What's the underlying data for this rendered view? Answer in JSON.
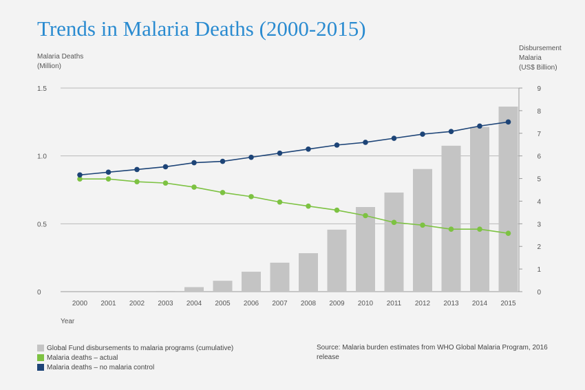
{
  "title": "Trends in Malaria Deaths (2000-2015)",
  "left_axis_label": [
    "Malaria Deaths",
    "(Million)"
  ],
  "right_axis_label": [
    "Disbursement",
    "Malaria",
    "(US$ Billion)"
  ],
  "x_axis_label": "Year",
  "source": "Source: Malaria burden estimates from WHO Global Malaria Program, 2016 release",
  "legend": [
    {
      "label": "Global Fund disbursements to malaria programs (cumulative)",
      "color": "#c4c4c4"
    },
    {
      "label": "Malaria deaths – actual",
      "color": "#7dc242"
    },
    {
      "label": "Malaria deaths – no malaria control",
      "color": "#1d4477"
    }
  ],
  "chart_data": {
    "type": "bar+line",
    "title": "Trends in Malaria Deaths (2000-2015)",
    "xlabel": "Year",
    "ylabel_left": "Malaria Deaths (Million)",
    "ylabel_right": "Disbursement Malaria (US$ Billion)",
    "categories": [
      "2000",
      "2001",
      "2002",
      "2003",
      "2004",
      "2005",
      "2006",
      "2007",
      "2008",
      "2009",
      "2010",
      "2011",
      "2012",
      "2013",
      "2014",
      "2015"
    ],
    "y_left_ticks": [
      "0",
      "0.5",
      "1.0",
      "1.5"
    ],
    "y_right_ticks": [
      "0",
      "1",
      "2",
      "3",
      "4",
      "5",
      "6",
      "7",
      "8",
      "9"
    ],
    "ylim_left": [
      0,
      1.5
    ],
    "ylim_right": [
      0,
      9
    ],
    "grid": "horizontal",
    "legend_position": "bottom-left",
    "series": [
      {
        "name": "Global Fund disbursements to malaria programs (cumulative)",
        "type": "bar",
        "axis": "right",
        "color": "#c4c4c4",
        "values": [
          0,
          0,
          0,
          0.03,
          0.2,
          0.48,
          0.88,
          1.28,
          1.7,
          2.74,
          3.74,
          4.38,
          5.42,
          6.45,
          7.28,
          8.18
        ]
      },
      {
        "name": "Malaria deaths – actual",
        "type": "line",
        "axis": "left",
        "color": "#7dc242",
        "values": [
          0.83,
          0.83,
          0.81,
          0.8,
          0.77,
          0.73,
          0.7,
          0.66,
          0.63,
          0.6,
          0.56,
          0.51,
          0.49,
          0.46,
          0.46,
          0.43
        ]
      },
      {
        "name": "Malaria deaths – no malaria control",
        "type": "line",
        "axis": "left",
        "color": "#1d4477",
        "values": [
          0.86,
          0.88,
          0.9,
          0.92,
          0.95,
          0.96,
          0.99,
          1.02,
          1.05,
          1.08,
          1.1,
          1.13,
          1.16,
          1.18,
          1.22,
          1.25
        ]
      }
    ]
  }
}
